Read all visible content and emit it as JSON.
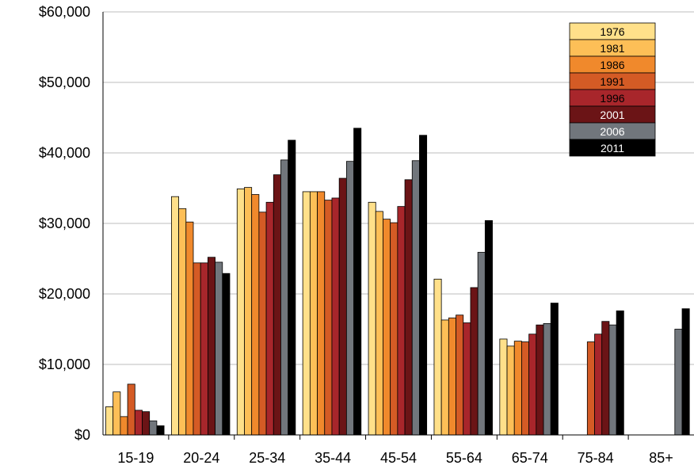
{
  "chart_data": {
    "type": "bar",
    "title": "",
    "xlabel": "",
    "ylabel": "",
    "categories": [
      "15-19",
      "20-24",
      "25-34",
      "35-44",
      "45-54",
      "55-64",
      "65-74",
      "75-84",
      "85+"
    ],
    "ylim": [
      0,
      60000
    ],
    "yticks": [
      0,
      10000,
      20000,
      30000,
      40000,
      50000,
      60000
    ],
    "ytick_labels": [
      "$0",
      "$10,000",
      "$20,000",
      "$30,000",
      "$40,000",
      "$50,000",
      "$60,000"
    ],
    "grid": true,
    "legend_position": "top-right",
    "series": [
      {
        "name": "1976",
        "color": "#FFE08A",
        "label_color": "#000000",
        "values": [
          4000,
          33800,
          34900,
          34500,
          33000,
          22100,
          13600,
          null,
          null
        ]
      },
      {
        "name": "1981",
        "color": "#FDBF57",
        "label_color": "#000000",
        "values": [
          6100,
          32100,
          35100,
          34500,
          31700,
          16300,
          12600,
          null,
          null
        ]
      },
      {
        "name": "1986",
        "color": "#F0892C",
        "label_color": "#000000",
        "values": [
          2600,
          30200,
          34100,
          34500,
          30600,
          16600,
          13300,
          null,
          null
        ]
      },
      {
        "name": "1991",
        "color": "#D45B25",
        "label_color": "#000000",
        "values": [
          7200,
          24400,
          31600,
          33300,
          30100,
          17000,
          13200,
          13200,
          null
        ]
      },
      {
        "name": "1996",
        "color": "#A8262B",
        "label_color": "#000000",
        "values": [
          3500,
          24400,
          33000,
          33600,
          32400,
          15900,
          14300,
          14300,
          null
        ]
      },
      {
        "name": "2001",
        "color": "#6B1416",
        "label_color": "#ffffff",
        "values": [
          3300,
          25200,
          36900,
          36400,
          36200,
          20900,
          15600,
          16100,
          null
        ]
      },
      {
        "name": "2006",
        "color": "#71767C",
        "label_color": "#ffffff",
        "values": [
          2000,
          24500,
          39000,
          38800,
          38900,
          25900,
          15800,
          15600,
          15000
        ]
      },
      {
        "name": "2011",
        "color": "#000000",
        "label_color": "#ffffff",
        "values": [
          1300,
          22900,
          41800,
          43500,
          42500,
          30400,
          18700,
          17600,
          17900
        ]
      }
    ]
  }
}
